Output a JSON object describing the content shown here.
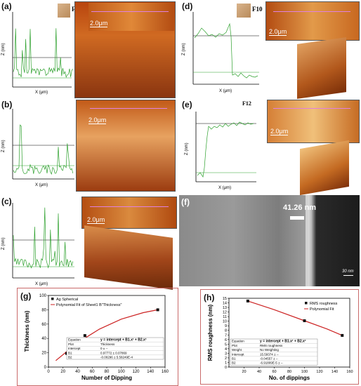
{
  "panels": {
    "a": {
      "label": "(a)",
      "sample": "F8",
      "scale": "2.0μm",
      "ylabel": "Z (nm)",
      "xlabel": "X (μm)"
    },
    "b": {
      "label": "(b)",
      "scale": "2.0μm",
      "ylabel": "Z (nm)",
      "xlabel": "X (μm)"
    },
    "c": {
      "label": "(c)",
      "scale": "2.0μm",
      "ylabel": "Z (nm)",
      "xlabel": "X (μm)"
    },
    "d": {
      "label": "(d)",
      "sample": "F10",
      "scale": "2.0μm",
      "ylabel": "Z (nm)",
      "xlabel": "X (μm)"
    },
    "e": {
      "label": "(e)",
      "sample": "F12",
      "scale": "2.0μm",
      "ylabel": "Z (nm)",
      "xlabel": "X (μm)"
    },
    "f": {
      "label": "(f)",
      "thickness": "41.26 nm",
      "scale": "30 nm"
    },
    "g": {
      "label": "(g)"
    },
    "h": {
      "label": "(h)"
    }
  },
  "colors": {
    "profile": "#2ca02c",
    "afm_orange": "#c8641e",
    "afm_dark": "#6b2a0a",
    "fit_red": "#cc2222",
    "cursor_magenta": "#e080e0"
  },
  "chart_data": [
    {
      "type": "scatter",
      "id": "g",
      "legend": [
        "Ag Spherical",
        "Polynomial Fit of Sheet1 B\"Thickness\""
      ],
      "legend_position": "top-left",
      "xlabel": "Number of Dipping",
      "ylabel": "Thickness (nm)",
      "xlim": [
        0,
        160
      ],
      "ylim": [
        0,
        100
      ],
      "xticks": [
        0,
        20,
        40,
        60,
        80,
        100,
        120,
        140,
        160
      ],
      "yticks": [
        0,
        20,
        40,
        60,
        80,
        100
      ],
      "x": [
        25,
        50,
        150
      ],
      "y": [
        19,
        44,
        80
      ],
      "fit": {
        "x": [
          10,
          40,
          70,
          100,
          130,
          150
        ],
        "y": [
          9,
          34,
          53,
          67,
          76,
          80
        ]
      },
      "table": [
        [
          "Equation",
          "y = intercept + B1.x¹ + B2.x²"
        ],
        [
          "Plot",
          "Thickness"
        ],
        [
          "Intercept",
          "0 ± --"
        ],
        [
          "B1",
          "0.97772 ± 0.07869"
        ],
        [
          "B2",
          "-0.00296 ± 5.58249E-4"
        ]
      ]
    },
    {
      "type": "scatter",
      "id": "h",
      "legend": [
        "RMS roughness",
        "Polynomial Fit"
      ],
      "legend_position": "top-right",
      "xlabel": "No. of dippings",
      "ylabel": "RMS roughness (nm)",
      "xlim": [
        0,
        160
      ],
      "ylim": [
        0,
        15
      ],
      "xticks": [
        20,
        40,
        60,
        80,
        100,
        120,
        140,
        160
      ],
      "yticks": [
        0,
        1,
        2,
        3,
        4,
        5,
        6,
        7,
        8,
        9,
        10,
        11,
        12,
        13,
        14,
        15
      ],
      "x": [
        25,
        100,
        150
      ],
      "y": [
        14.4,
        10.1,
        6.9
      ],
      "fit": {
        "x": [
          25,
          60,
          100,
          130,
          150
        ],
        "y": [
          14.4,
          12.5,
          10.1,
          8.3,
          6.9
        ]
      },
      "table": [
        [
          "Equation",
          "y = intercept + B1.x¹ + B2.x²"
        ],
        [
          "Plot",
          "RMS roughness"
        ],
        [
          "Weight",
          "No Weighting"
        ],
        [
          "Intercept",
          "15.59374 ± --"
        ],
        [
          "B1",
          "-0.04557 ± --"
        ],
        [
          "B2",
          "-6.91809E-5 ± --"
        ]
      ]
    }
  ]
}
